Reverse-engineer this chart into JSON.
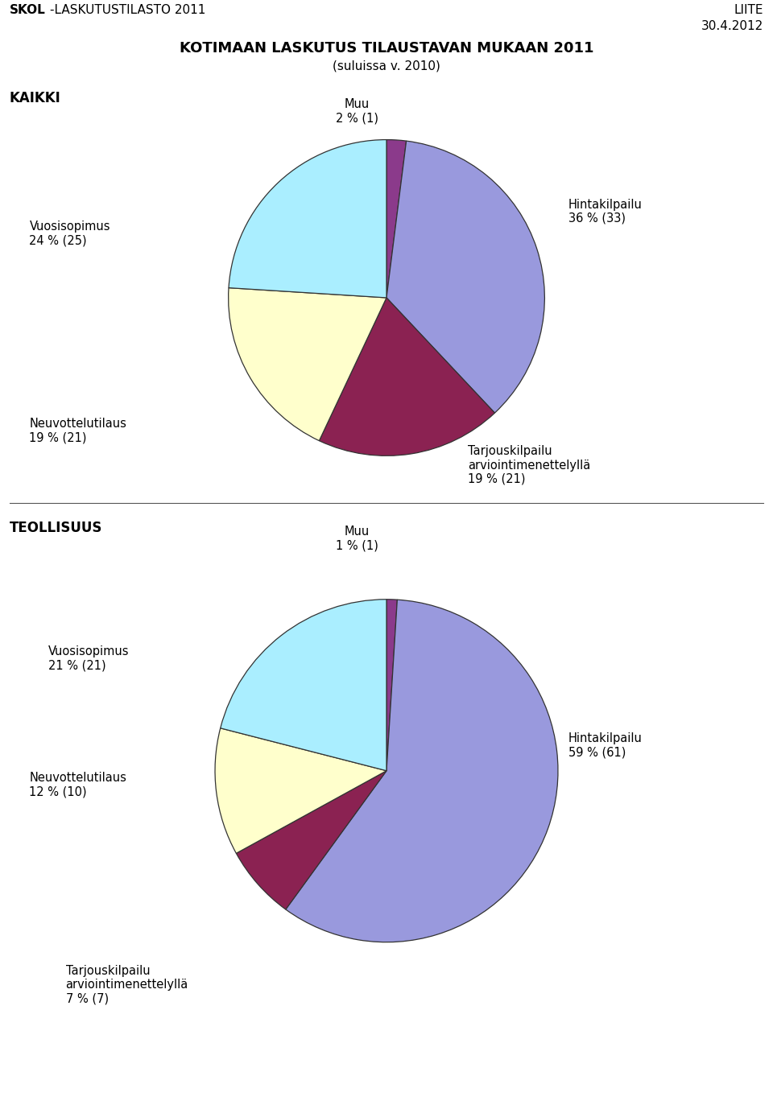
{
  "title_main": "KOTIMAAN LASKUTUS TILAUSTAVAN MUKAAN 2011",
  "title_sub": "(suluissa v. 2010)",
  "header_right_line1": "LIITE",
  "header_right_line2": "30.4.2012",
  "chart1_label": "KAIKKI",
  "chart2_label": "TEOLLISUUS",
  "chart1": {
    "slice_values": [
      2,
      36,
      19,
      19,
      24
    ],
    "slice_colors": [
      "#8b3a8b",
      "#9999dd",
      "#8b2252",
      "#ffffcc",
      "#aaeeff"
    ],
    "slice_names": [
      "Muu",
      "Hintakilpailu",
      "Tarjouskilpailu\narviointimenettelyllä",
      "Neuvottelutilaus",
      "Vuosisopimus"
    ]
  },
  "chart2": {
    "slice_values": [
      1,
      59,
      7,
      12,
      21
    ],
    "slice_colors": [
      "#8b3a8b",
      "#9999dd",
      "#8b2252",
      "#ffffcc",
      "#aaeeff"
    ],
    "slice_names": [
      "Muu",
      "Hintakilpailu",
      "Tarjouskilpailu\narviointimenettelyllä",
      "Neuvottelutilaus",
      "Vuosisopimus"
    ]
  },
  "background_color": "#ffffff",
  "label_fontsize": 10.5,
  "header_fontsize": 11,
  "title_fontsize": 13,
  "section_fontsize": 12
}
